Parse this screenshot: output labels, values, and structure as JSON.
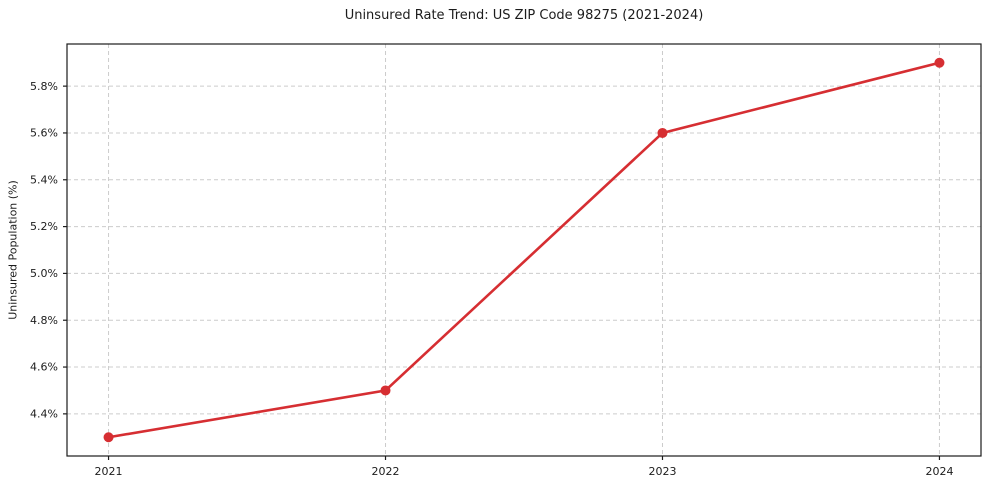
{
  "chart_data": {
    "type": "line",
    "title": "Uninsured Rate Trend: US ZIP Code 98275 (2021-2024)",
    "xlabel": "",
    "ylabel": "Uninsured Population (%)",
    "x": [
      2021,
      2022,
      2023,
      2024
    ],
    "x_tick_labels": [
      "2021",
      "2022",
      "2023",
      "2024"
    ],
    "values": [
      4.3,
      4.5,
      5.6,
      5.9
    ],
    "y_ticks": [
      4.4,
      4.6,
      4.8,
      5.0,
      5.2,
      5.4,
      5.6,
      5.8
    ],
    "y_tick_labels": [
      "4.4%",
      "4.6%",
      "4.8%",
      "5.0%",
      "5.2%",
      "5.4%",
      "5.6%",
      "5.8%"
    ],
    "xlim": [
      2020.85,
      2024.15
    ],
    "ylim": [
      4.22,
      5.98
    ],
    "grid": true,
    "legend_position": "none",
    "line_color": "#d62e32",
    "grid_color": "#cccccc",
    "axis_color": "#1c1c1c",
    "background_color": "#ffffff",
    "marker": "circle"
  }
}
